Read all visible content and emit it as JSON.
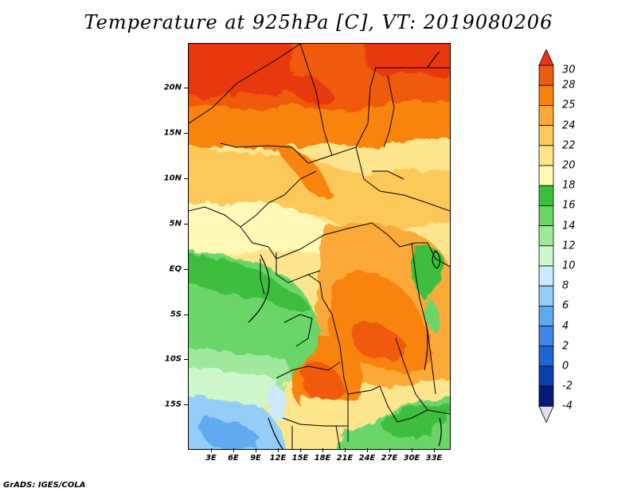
{
  "title": "Temperature at 925hPa [C], VT: 2019080206",
  "credit": "GrADS: IGES/COLA",
  "lat_labels": [
    "20N",
    "15N",
    "10N",
    "5N",
    "EQ",
    "5S",
    "10S",
    "15S"
  ],
  "lon_labels": [
    "3E",
    "6E",
    "9E",
    "12E",
    "15E",
    "18E",
    "21E",
    "24E",
    "27E",
    "30E",
    "33E"
  ],
  "colorbar": {
    "levels": [
      "30",
      "28",
      "25",
      "24",
      "22",
      "20",
      "18",
      "16",
      "14",
      "12",
      "10",
      "8",
      "6",
      "4",
      "2",
      "0",
      "-2",
      "-4"
    ],
    "colors": [
      "#e8380d",
      "#f05a10",
      "#f8830a",
      "#fba937",
      "#fcc85a",
      "#fde58e",
      "#fff9b8",
      "#3cbf3c",
      "#6ad66a",
      "#9fe89c",
      "#cff7cc",
      "#cdeafd",
      "#93cdf8",
      "#5eaaf0",
      "#3c8ae8",
      "#1f64d4",
      "#0b3fb0",
      "#061a7c",
      "#e2dcf4"
    ]
  }
}
